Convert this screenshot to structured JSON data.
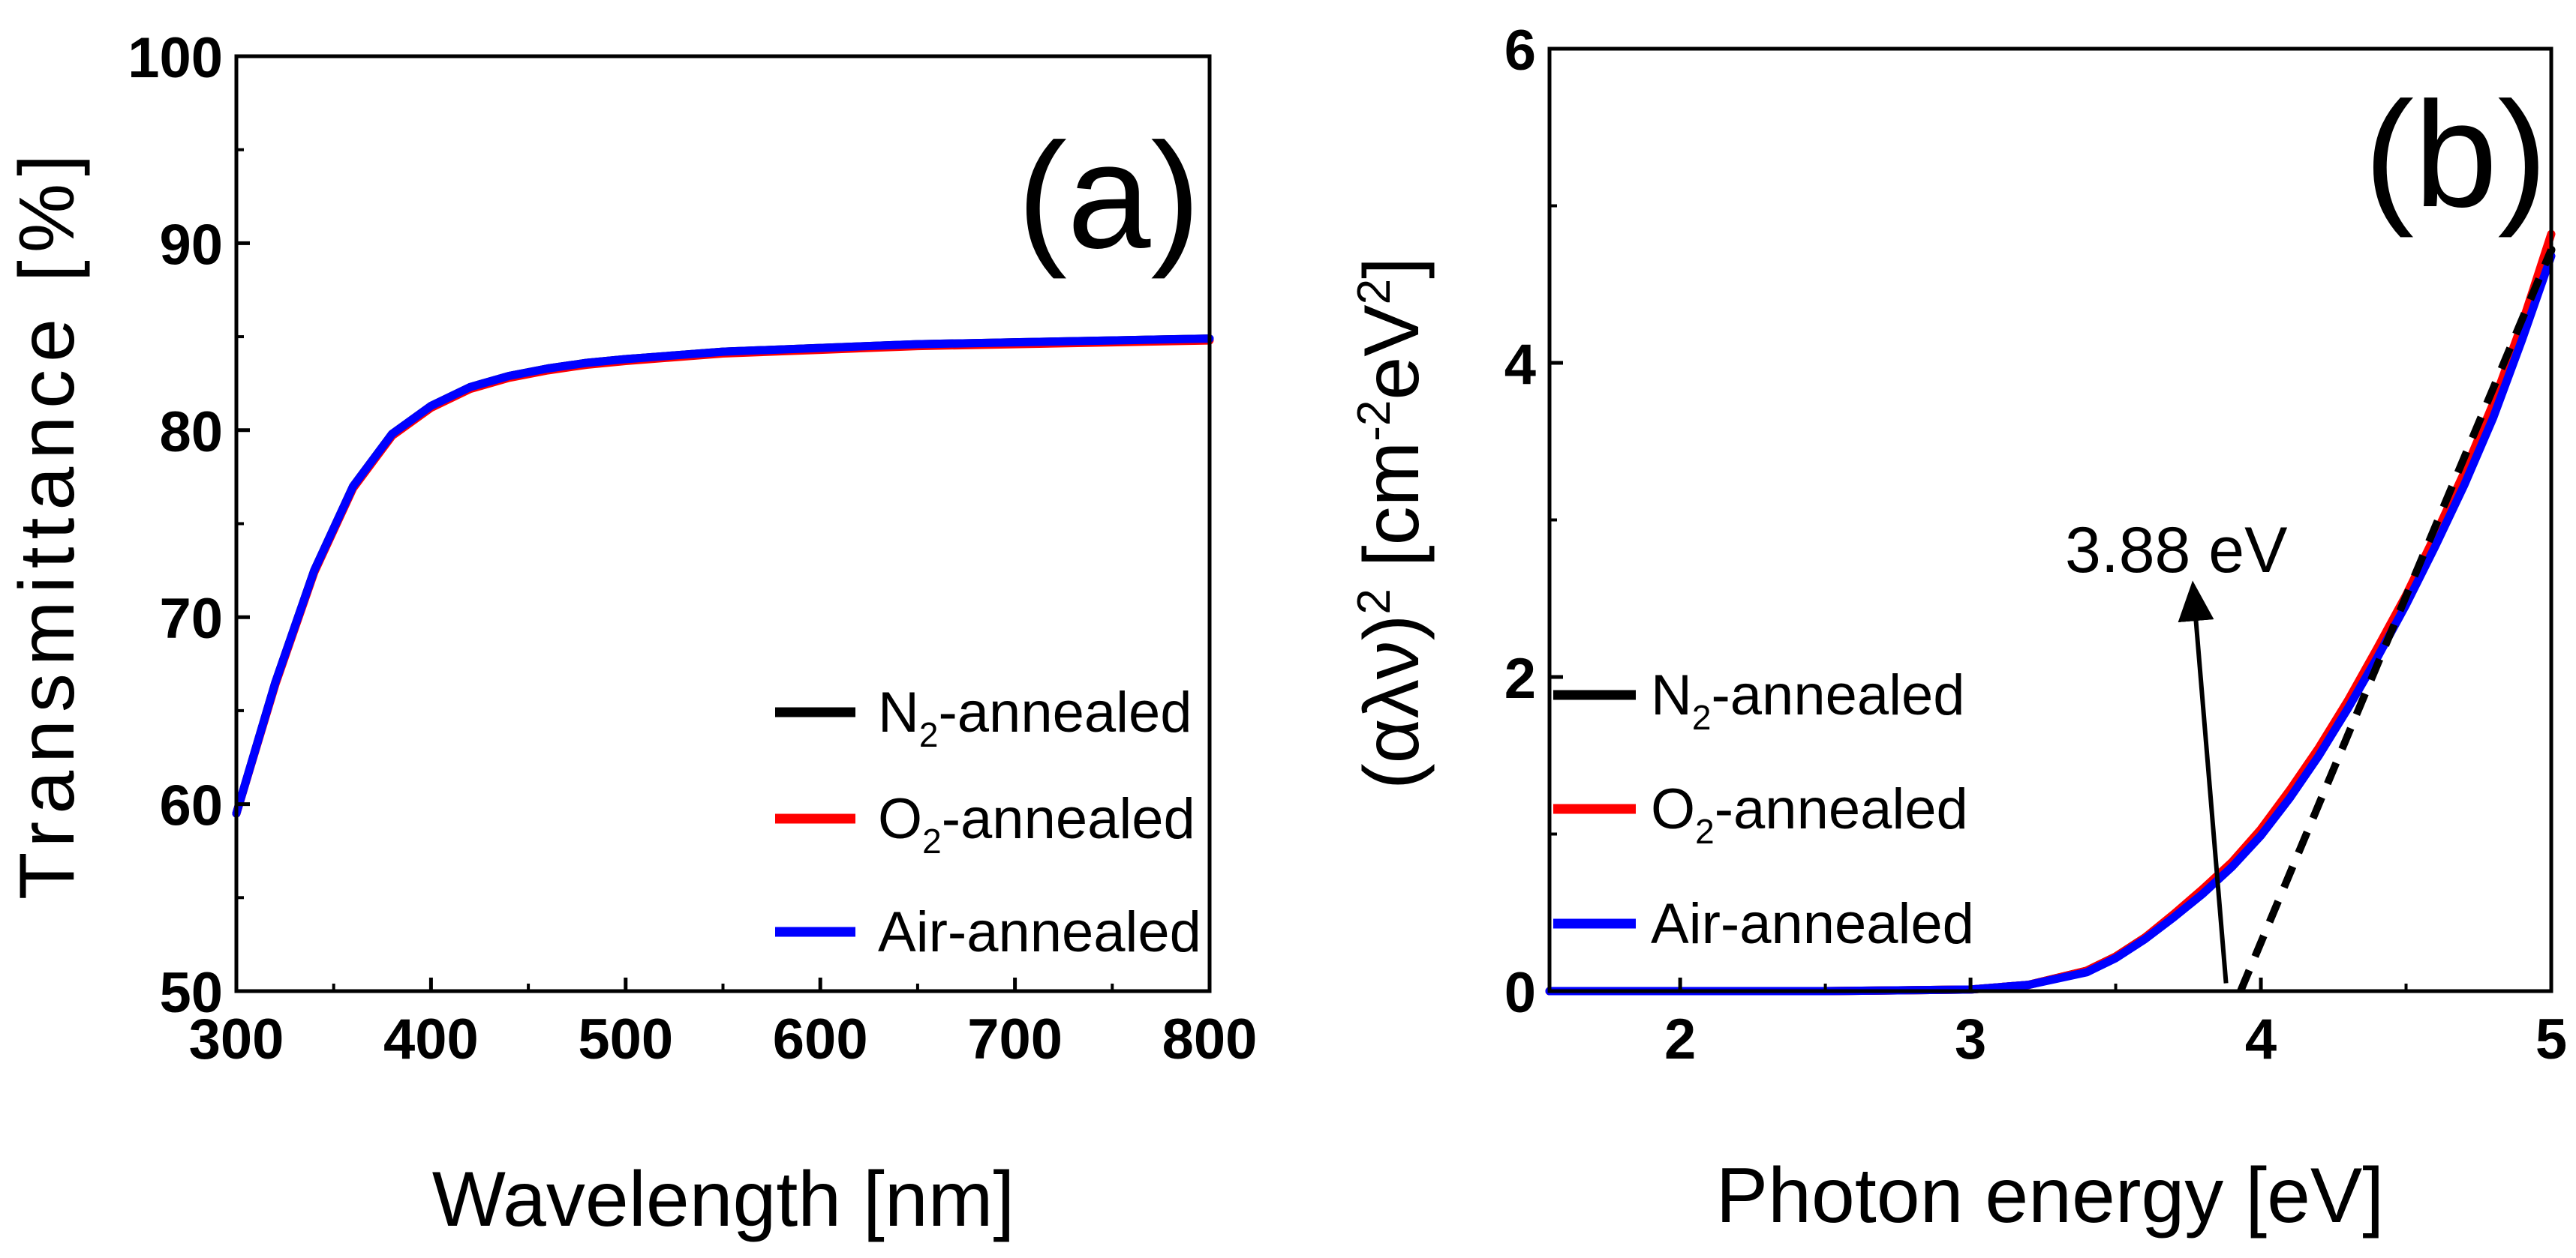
{
  "chart_data": [
    {
      "type": "line",
      "panel_label": "(a)",
      "xlabel": "Wavelength [nm]",
      "ylabel": "Transmittance  [%]",
      "xlim": [
        300,
        800
      ],
      "ylim": [
        50,
        100
      ],
      "xticks": [
        300,
        400,
        500,
        600,
        700,
        800
      ],
      "yticks": [
        50,
        60,
        70,
        80,
        90,
        100
      ],
      "x": [
        300,
        320,
        340,
        360,
        380,
        400,
        420,
        440,
        460,
        480,
        500,
        550,
        600,
        650,
        700,
        750,
        800
      ],
      "series": [
        {
          "name": "N2-annealed",
          "legend_main": "N",
          "legend_sub": "2",
          "legend_rest": "-annealed",
          "color": "#000000",
          "values": [
            59.5,
            66.5,
            72.5,
            77.0,
            79.8,
            81.3,
            82.3,
            82.9,
            83.3,
            83.6,
            83.8,
            84.2,
            84.4,
            84.6,
            84.7,
            84.8,
            84.9
          ]
        },
        {
          "name": "O2-annealed",
          "legend_main": "O",
          "legend_sub": "2",
          "legend_rest": "-annealed",
          "color": "#ff0000",
          "values": [
            59.5,
            66.4,
            72.4,
            76.9,
            79.7,
            81.2,
            82.2,
            82.8,
            83.2,
            83.5,
            83.7,
            84.1,
            84.3,
            84.5,
            84.6,
            84.7,
            84.8
          ]
        },
        {
          "name": "Air-annealed",
          "legend_main": "Air-annealed",
          "legend_sub": "",
          "legend_rest": "",
          "color": "#0000ff",
          "values": [
            59.5,
            66.5,
            72.5,
            77.0,
            79.8,
            81.3,
            82.3,
            82.9,
            83.3,
            83.6,
            83.8,
            84.2,
            84.4,
            84.6,
            84.7,
            84.8,
            84.9
          ]
        }
      ],
      "legend_position": "bottom-right"
    },
    {
      "type": "line",
      "panel_label": "(b)",
      "xlabel": "Photon energy [eV]",
      "ylabel_parts": {
        "greek": "(αλν)",
        "sup": "2",
        "bracket_open": " [cm",
        "sup2": "-2",
        "unit": "eV",
        "sup3": "2",
        "bracket_close": "]"
      },
      "xlim": [
        1.55,
        5
      ],
      "ylim": [
        0,
        6
      ],
      "xticks": [
        2,
        3,
        4,
        5
      ],
      "yticks": [
        0,
        2,
        4,
        6
      ],
      "x": [
        1.55,
        2.0,
        2.5,
        3.0,
        3.2,
        3.4,
        3.5,
        3.6,
        3.7,
        3.8,
        3.9,
        4.0,
        4.1,
        4.2,
        4.3,
        4.4,
        4.5,
        4.6,
        4.7,
        4.8,
        4.9,
        5.0
      ],
      "series": [
        {
          "name": "N2-annealed",
          "legend_main": "N",
          "legend_sub": "2",
          "legend_rest": "-annealed",
          "color": "#000000",
          "values": [
            0,
            0,
            0,
            0.01,
            0.04,
            0.13,
            0.22,
            0.34,
            0.48,
            0.63,
            0.8,
            1.0,
            1.25,
            1.52,
            1.82,
            2.15,
            2.48,
            2.85,
            3.25,
            3.68,
            4.18,
            4.72
          ]
        },
        {
          "name": "O2-annealed",
          "legend_main": "O",
          "legend_sub": "2",
          "legend_rest": "-annealed",
          "color": "#ff0000",
          "values": [
            0,
            0,
            0,
            0.01,
            0.04,
            0.13,
            0.22,
            0.34,
            0.49,
            0.65,
            0.82,
            1.03,
            1.28,
            1.55,
            1.85,
            2.18,
            2.52,
            2.9,
            3.3,
            3.74,
            4.25,
            4.82
          ]
        },
        {
          "name": "Air-annealed",
          "legend_main": "Air-annealed",
          "legend_sub": "",
          "legend_rest": "",
          "color": "#0000ff",
          "values": [
            0,
            0,
            0,
            0.01,
            0.04,
            0.12,
            0.21,
            0.33,
            0.47,
            0.62,
            0.79,
            0.99,
            1.23,
            1.5,
            1.8,
            2.12,
            2.46,
            2.83,
            3.22,
            3.65,
            4.15,
            4.68
          ]
        }
      ],
      "fit_line": {
        "x": [
          3.93,
          5.0
        ],
        "y": [
          0,
          4.72
        ],
        "style": "dashed",
        "color": "#000000"
      },
      "annotation": {
        "text": "3.88 eV",
        "arrow_from": [
          3.88,
          0.05
        ],
        "arrow_to": [
          3.77,
          2.5
        ]
      },
      "legend_position": "bottom-left"
    }
  ]
}
